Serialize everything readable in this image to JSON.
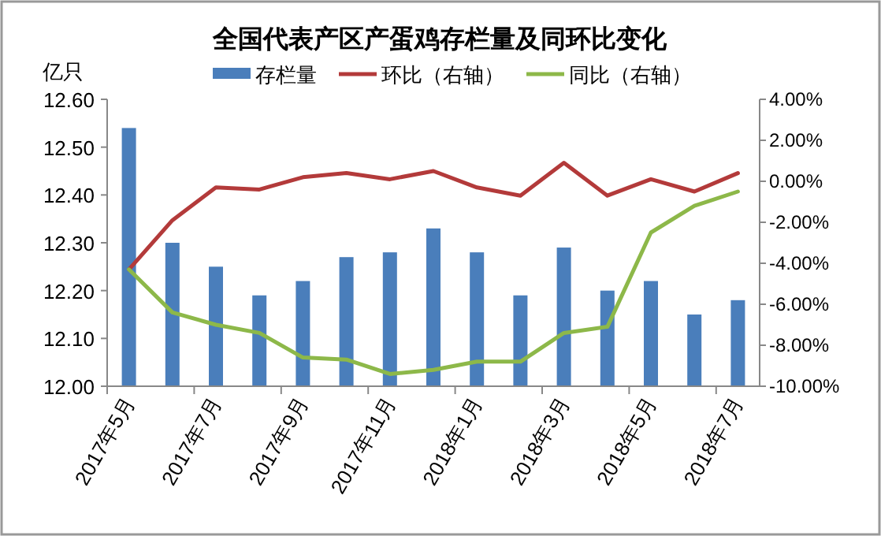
{
  "chart_data": {
    "type": "bar",
    "title": "全国代表产区产蛋鸡存栏量及同环比变化",
    "ylabel": "亿只",
    "categories": [
      "2017年5月",
      null,
      "2017年7月",
      null,
      "2017年9月",
      null,
      "2017年11月",
      null,
      "2018年1月",
      null,
      "2018年3月",
      null,
      "2018年5月",
      null,
      "2018年7月"
    ],
    "series": [
      {
        "name": "存栏量",
        "color": "#4a7ebb",
        "values": [
          12.54,
          12.3,
          12.25,
          12.19,
          12.22,
          12.27,
          12.28,
          12.33,
          12.28,
          12.19,
          12.29,
          12.2,
          12.22,
          12.15,
          12.18
        ]
      },
      {
        "name": "环比（右轴）",
        "type": "line",
        "axis": "y2",
        "color": "#b33a3a",
        "values": [
          -4.3,
          -1.9,
          -0.3,
          -0.4,
          0.2,
          0.4,
          0.1,
          0.5,
          -0.3,
          -0.7,
          0.9,
          -0.7,
          0.1,
          -0.5,
          0.4
        ]
      },
      {
        "name": "同比（右轴）",
        "type": "line",
        "axis": "y2",
        "color": "#8db849",
        "values": [
          -4.3,
          -6.4,
          -7.0,
          -7.4,
          -8.6,
          -8.7,
          -9.4,
          -9.2,
          -8.8,
          -8.8,
          -7.4,
          -7.1,
          -2.5,
          -1.2,
          -0.5
        ]
      }
    ],
    "ylim": [
      12.0,
      12.6
    ],
    "yticks": [
      {
        "value": 12.0,
        "label": "12.00"
      },
      {
        "value": 12.1,
        "label": "12.10"
      },
      {
        "value": 12.2,
        "label": "12.20"
      },
      {
        "value": 12.3,
        "label": "12.30"
      },
      {
        "value": 12.4,
        "label": "12.40"
      },
      {
        "value": 12.5,
        "label": "12.50"
      },
      {
        "value": 12.6,
        "label": "12.60"
      }
    ],
    "y2lim": [
      -10,
      4
    ],
    "y2ticks": [
      {
        "value": -10,
        "label": "-10.00%"
      },
      {
        "value": -8,
        "label": "-8.00%"
      },
      {
        "value": -6,
        "label": "-6.00%"
      },
      {
        "value": -4,
        "label": "-4.00%"
      },
      {
        "value": -2,
        "label": "-2.00%"
      },
      {
        "value": 0,
        "label": "0.00%"
      },
      {
        "value": 2,
        "label": "2.00%"
      },
      {
        "value": 4,
        "label": "4.00%"
      }
    ],
    "legend": "top",
    "grid": false,
    "marker": "none"
  }
}
